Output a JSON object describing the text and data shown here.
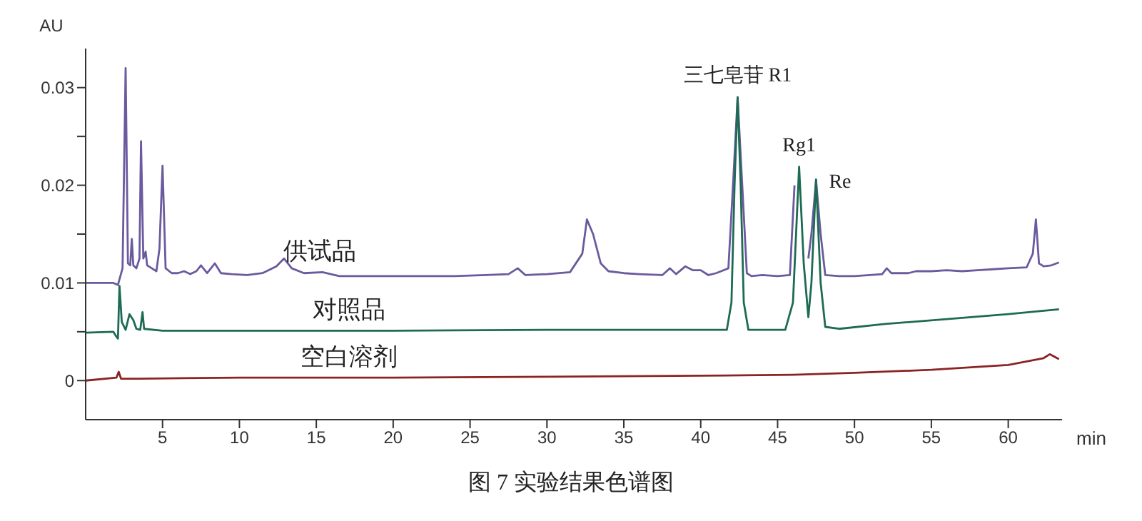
{
  "chart_data": {
    "type": "line",
    "title": "图 7 实验结果色谱图",
    "xlabel": "min",
    "ylabel": "AU",
    "xlim": [
      0,
      63.5
    ],
    "ylim": [
      -0.004,
      0.034
    ],
    "xticks": [
      5,
      10,
      15,
      20,
      25,
      30,
      35,
      40,
      45,
      50,
      55,
      60
    ],
    "yticks": [
      0,
      {
        "value": 0.005,
        "label": null
      },
      0.01,
      {
        "value": 0.015,
        "label": null
      },
      0.02,
      {
        "value": 0.025,
        "label": null
      },
      0.03
    ],
    "marker": "none",
    "line_style": "solid",
    "grid": false,
    "annotations": [
      {
        "text": "三七皂苷 R1",
        "x": 42.4,
        "y": 0.029
      },
      {
        "text": "Rg1",
        "x": 46.4,
        "y": 0.0219
      },
      {
        "text": "Re",
        "x": 47.6,
        "y": 0.0205
      }
    ],
    "series": [
      {
        "name": "供试品",
        "color": "#6b5a9e",
        "x": [
          0,
          1.8,
          2.1,
          2.4,
          2.6,
          2.75,
          2.9,
          3.0,
          3.1,
          3.3,
          3.5,
          3.6,
          3.75,
          3.9,
          4.0,
          4.3,
          4.6,
          4.8,
          5.0,
          5.2,
          5.6,
          6.0,
          6.4,
          6.8,
          7.2,
          7.5,
          7.9,
          8.4,
          8.8,
          9.5,
          10.5,
          11.5,
          12.4,
          12.9,
          13.4,
          14.2,
          15.4,
          16.5,
          18,
          20,
          22,
          24,
          26,
          27.5,
          28.1,
          28.6,
          30,
          31.5,
          32.3,
          32.6,
          33.0,
          33.5,
          34,
          35,
          36,
          37.5,
          38,
          38.4,
          39.0,
          39.5,
          40.0,
          40.5,
          41.0,
          41.8,
          42.1,
          42.4,
          42.7,
          43.0,
          43.3,
          44,
          45,
          45.8,
          46.1,
          46.3,
          46.8,
          47.0,
          47.2,
          47.5,
          47.8,
          48.1,
          49,
          50,
          51,
          51.8,
          52.1,
          52.4,
          53.5,
          54,
          55,
          56,
          57,
          58,
          59,
          60,
          61.2,
          61.6,
          61.8,
          62.0,
          62.3,
          62.8,
          63.3
        ],
        "values": [
          0.01,
          0.01,
          0.0098,
          0.0115,
          0.032,
          0.012,
          0.0118,
          0.0145,
          0.0118,
          0.0115,
          0.0125,
          0.0245,
          0.0125,
          0.0132,
          0.0118,
          0.0115,
          0.0112,
          0.0135,
          0.022,
          0.0115,
          0.011,
          0.011,
          0.0112,
          0.0109,
          0.0112,
          0.0118,
          0.011,
          0.012,
          0.011,
          0.0109,
          0.0108,
          0.011,
          0.0117,
          0.0125,
          0.0115,
          0.011,
          0.0111,
          0.0107,
          0.0107,
          0.0107,
          0.0107,
          0.0107,
          0.0108,
          0.0109,
          0.0115,
          0.0108,
          0.0109,
          0.0111,
          0.013,
          0.0165,
          0.015,
          0.012,
          0.0112,
          0.011,
          0.0109,
          0.0108,
          0.0115,
          0.0109,
          0.0117,
          0.0113,
          0.0113,
          0.0108,
          0.011,
          0.0115,
          0.02,
          0.029,
          0.02,
          0.011,
          0.0107,
          0.0108,
          0.0107,
          0.0108,
          0.02,
          null,
          null,
          0.0125,
          0.015,
          0.0205,
          0.015,
          0.0108,
          0.0107,
          0.0107,
          0.0108,
          0.0109,
          0.0115,
          0.011,
          0.011,
          0.0112,
          0.0112,
          0.0113,
          0.0112,
          0.0113,
          0.0114,
          0.0115,
          0.0116,
          0.013,
          0.0165,
          0.012,
          0.0117,
          0.0118,
          0.0121
        ]
      },
      {
        "name": "对照品",
        "color": "#1e6b55",
        "x": [
          0,
          1.8,
          2.0,
          2.1,
          2.2,
          2.35,
          2.6,
          2.85,
          3.1,
          3.3,
          3.55,
          3.7,
          3.8,
          5,
          10,
          20,
          30,
          40,
          41.7,
          42.0,
          42.2,
          42.4,
          42.6,
          42.8,
          43.1,
          45.5,
          46.0,
          46.4,
          46.7,
          47.0,
          47.2,
          47.5,
          47.8,
          48.1,
          49,
          52,
          56,
          60,
          63.3
        ],
        "values": [
          0.0049,
          0.005,
          0.0045,
          0.0043,
          0.0097,
          0.006,
          0.0052,
          0.0068,
          0.0062,
          0.0053,
          0.0052,
          0.007,
          0.0053,
          0.0051,
          0.0051,
          0.0051,
          0.0052,
          0.0052,
          0.0052,
          0.008,
          0.02,
          0.029,
          0.02,
          0.008,
          0.0052,
          0.0052,
          0.008,
          0.0219,
          0.012,
          0.0065,
          0.01,
          0.0206,
          0.01,
          0.0055,
          0.0053,
          0.0058,
          0.0063,
          0.0068,
          0.0073
        ]
      },
      {
        "name": "空白溶剂",
        "color": "#8b2323",
        "x": [
          0,
          2.0,
          2.15,
          2.3,
          3.5,
          10,
          20,
          30,
          40,
          46,
          50,
          55,
          60,
          62.3,
          62.7,
          63.3
        ],
        "values": [
          0,
          0.0003,
          0.0009,
          0.0002,
          0.0002,
          0.0003,
          0.0003,
          0.0004,
          0.0005,
          0.0006,
          0.0008,
          0.0011,
          0.0016,
          0.0023,
          0.0027,
          0.0022
        ]
      }
    ]
  }
}
